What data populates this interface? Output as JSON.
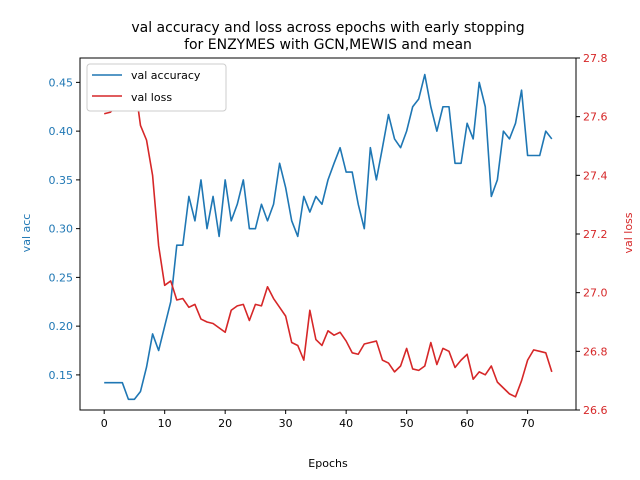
{
  "chart_data": {
    "type": "line",
    "title_line1": "val accuracy and loss across epochs with early stopping",
    "title_line2": "for ENZYMES with GCN,MEWIS and mean",
    "xlabel": "Epochs",
    "ylabel_left": "val acc",
    "ylabel_right": "val loss",
    "xlim": [
      -4,
      78
    ],
    "ylim_left": [
      0.114,
      0.475
    ],
    "ylim_right": [
      26.6,
      27.8
    ],
    "xticks": [
      0,
      10,
      20,
      30,
      40,
      50,
      60,
      70
    ],
    "yticks_left": [
      0.15,
      0.2,
      0.25,
      0.3,
      0.35,
      0.4,
      0.45
    ],
    "yticks_right": [
      26.6,
      26.8,
      27.0,
      27.2,
      27.4,
      27.6,
      27.8
    ],
    "legend_position": "upper-left",
    "colors": {
      "acc": "#1f77b4",
      "loss": "#d62728"
    },
    "series": [
      {
        "name": "val accuracy",
        "axis": "left",
        "color": "#1f77b4",
        "values": [
          0.142,
          0.142,
          0.142,
          0.142,
          0.125,
          0.125,
          0.133,
          0.158,
          0.192,
          0.175,
          0.2,
          0.225,
          0.283,
          0.283,
          0.333,
          0.308,
          0.35,
          0.3,
          0.333,
          0.292,
          0.35,
          0.308,
          0.325,
          0.35,
          0.3,
          0.3,
          0.325,
          0.308,
          0.325,
          0.367,
          0.342,
          0.308,
          0.292,
          0.333,
          0.317,
          0.333,
          0.325,
          0.35,
          0.367,
          0.383,
          0.358,
          0.358,
          0.325,
          0.3,
          0.383,
          0.35,
          0.383,
          0.417,
          0.392,
          0.383,
          0.4,
          0.425,
          0.433,
          0.458,
          0.425,
          0.4,
          0.425,
          0.425,
          0.367,
          0.367,
          0.408,
          0.392,
          0.45,
          0.425,
          0.333,
          0.35,
          0.4,
          0.392,
          0.408,
          0.442,
          0.375,
          0.375,
          0.375,
          0.4,
          0.392
        ]
      },
      {
        "name": "val loss",
        "axis": "right",
        "color": "#d62728",
        "values": [
          27.61,
          27.615,
          27.635,
          27.69,
          27.75,
          27.72,
          27.57,
          27.52,
          27.4,
          27.16,
          27.025,
          27.04,
          26.975,
          26.98,
          26.95,
          26.96,
          26.91,
          26.9,
          26.895,
          26.88,
          26.865,
          26.94,
          26.955,
          26.96,
          26.905,
          26.96,
          26.955,
          27.02,
          26.98,
          26.95,
          26.92,
          26.83,
          26.82,
          26.77,
          26.94,
          26.84,
          26.82,
          26.87,
          26.855,
          26.865,
          26.835,
          26.795,
          26.79,
          26.825,
          26.83,
          26.835,
          26.77,
          26.76,
          26.73,
          26.75,
          26.81,
          26.74,
          26.735,
          26.75,
          26.83,
          26.755,
          26.81,
          26.8,
          26.745,
          26.77,
          26.79,
          26.705,
          26.73,
          26.72,
          26.75,
          26.695,
          26.675,
          26.655,
          26.645,
          26.7,
          26.77,
          26.805,
          26.8,
          26.795,
          26.73
        ]
      }
    ]
  }
}
